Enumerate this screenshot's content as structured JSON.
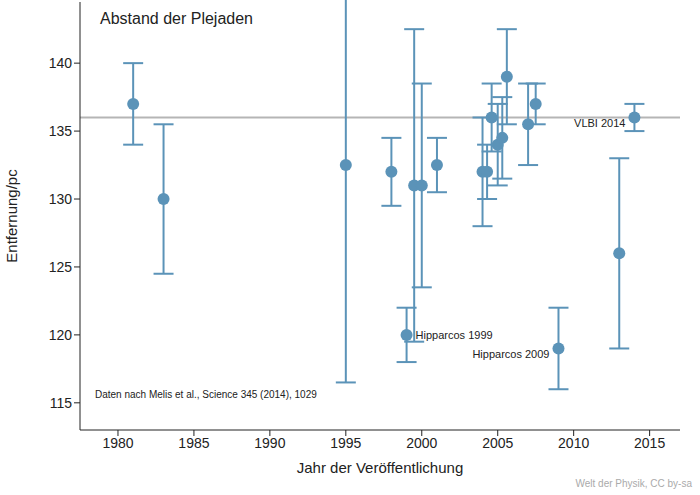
{
  "chart_data": {
    "type": "scatter",
    "title": "Abstand der Plejaden",
    "x_label": "Jahr der Veröffentlichung",
    "y_label": "Entfernung/pc",
    "x": [
      1981,
      1983,
      1995,
      1998,
      1999,
      1999.5,
      2000,
      2001,
      2004,
      2004.3,
      2004.6,
      2005,
      2005.3,
      2005.6,
      2007,
      2007.5,
      2009,
      2013,
      2014
    ],
    "values": [
      137,
      130,
      132.5,
      132,
      120,
      131,
      131,
      132.5,
      132,
      132,
      136,
      134,
      134.5,
      139,
      135.5,
      137,
      119,
      126,
      136
    ],
    "yerr_minus": [
      3,
      5.5,
      16,
      2.5,
      2,
      11.5,
      7.5,
      2,
      4,
      2,
      2.5,
      3,
      3,
      3.5,
      3,
      1.5,
      3,
      7,
      1
    ],
    "yerr_plus": [
      3,
      5.5,
      16,
      2.5,
      2,
      11.5,
      7.5,
      2,
      4,
      2,
      2.5,
      3,
      3,
      3.5,
      3,
      1.5,
      3,
      7,
      1
    ],
    "point_labels": [
      null,
      null,
      null,
      null,
      "Hipparcos 1999",
      null,
      null,
      null,
      null,
      null,
      null,
      null,
      null,
      null,
      null,
      null,
      "Hipparcos 2009",
      null,
      "VLBI 2014"
    ],
    "reference_line": 136,
    "source": "Daten nach Melis et al., Science 345 (2014), 1029",
    "credit": "Welt der Physik, CC by-sa",
    "color": "#5b93b8",
    "marker": "circle",
    "grid": false,
    "xlim": [
      1977.5,
      2017
    ],
    "ylim": [
      113,
      144.5
    ],
    "xticks": [
      1980,
      1985,
      1990,
      1995,
      2000,
      2005,
      2010,
      2015
    ],
    "yticks": [
      115,
      120,
      125,
      130,
      135,
      140
    ]
  }
}
